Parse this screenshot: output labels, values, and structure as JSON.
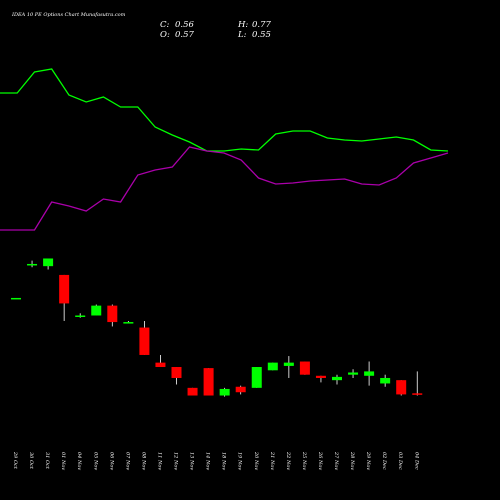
{
  "chart_data": [
    {
      "type": "line",
      "ylim": [
        0,
        100
      ],
      "series": [
        {
          "color": "#00ff00",
          "values": [
            73.5,
            73.5,
            84,
            85.5,
            72.5,
            69,
            71.5,
            66.5,
            66.5,
            56.5,
            52.5,
            49,
            44.5,
            44.5,
            45.5,
            45,
            53,
            54.5,
            54.5,
            51,
            50,
            49.5,
            50.5,
            51.5,
            50,
            45,
            44.5
          ]
        },
        {
          "color": "#aa00aa",
          "values": [
            5,
            5,
            5,
            19,
            17,
            14.5,
            20.5,
            19,
            32.5,
            35,
            36.5,
            46.5,
            44.5,
            43.5,
            40,
            31,
            28,
            28.5,
            29.5,
            30,
            30.5,
            28,
            27.5,
            31,
            38.5,
            41,
            43.5
          ]
        }
      ]
    },
    {
      "type": "candlestick",
      "title": "IDEA 10 PE Options Chart Munafasutra.com",
      "summary": [
        {
          "label": "C:",
          "value": 0.56
        },
        {
          "label": "H:",
          "value": 0.77
        },
        {
          "label": "O:",
          "value": 0.57
        },
        {
          "label": "L:",
          "value": 0.55
        }
      ],
      "ylim": [
        0.5,
        1.85
      ],
      "up_color": "#00ff00",
      "down_color": "#ff0000",
      "categories": [
        "29 Oct",
        "30 Oct",
        "31 Oct",
        "01 Nov",
        "04 Nov",
        "05 Nov",
        "06 Nov",
        "07 Nov",
        "08 Nov",
        "11 Nov",
        "12 Nov",
        "13 Nov",
        "14 Nov",
        "18 Nov",
        "19 Nov",
        "20 Nov",
        "21 Nov",
        "22 Nov",
        "25 Nov",
        "26 Nov",
        "27 Nov",
        "28 Nov",
        "29 Nov",
        "02 Dec",
        "03 Dec",
        "04 Dec"
      ],
      "open": [
        1.44,
        1.75,
        1.73,
        1.65,
        1.28,
        1.28,
        1.37,
        1.21,
        1.17,
        0.85,
        0.81,
        0.62,
        0.8,
        0.55,
        0.63,
        0.62,
        0.78,
        0.82,
        0.86,
        0.73,
        0.69,
        0.74,
        0.73,
        0.66,
        0.69,
        0.57
      ],
      "high": [
        1.44,
        1.78,
        1.8,
        1.65,
        1.3,
        1.38,
        1.38,
        1.23,
        1.23,
        0.92,
        0.81,
        0.62,
        0.8,
        0.62,
        0.64,
        0.81,
        0.85,
        0.91,
        0.86,
        0.73,
        0.74,
        0.79,
        0.86,
        0.74,
        0.69,
        0.77
      ],
      "low": [
        1.44,
        1.72,
        1.7,
        1.23,
        1.26,
        1.28,
        1.18,
        1.21,
        0.92,
        0.81,
        0.65,
        0.55,
        0.55,
        0.54,
        0.56,
        0.62,
        0.78,
        0.71,
        0.74,
        0.67,
        0.65,
        0.71,
        0.64,
        0.63,
        0.55,
        0.55
      ],
      "close": [
        1.44,
        1.75,
        1.8,
        1.39,
        1.28,
        1.37,
        1.22,
        1.22,
        0.92,
        0.81,
        0.71,
        0.55,
        0.55,
        0.61,
        0.58,
        0.81,
        0.85,
        0.85,
        0.74,
        0.71,
        0.72,
        0.76,
        0.77,
        0.71,
        0.56,
        0.56
      ]
    }
  ]
}
